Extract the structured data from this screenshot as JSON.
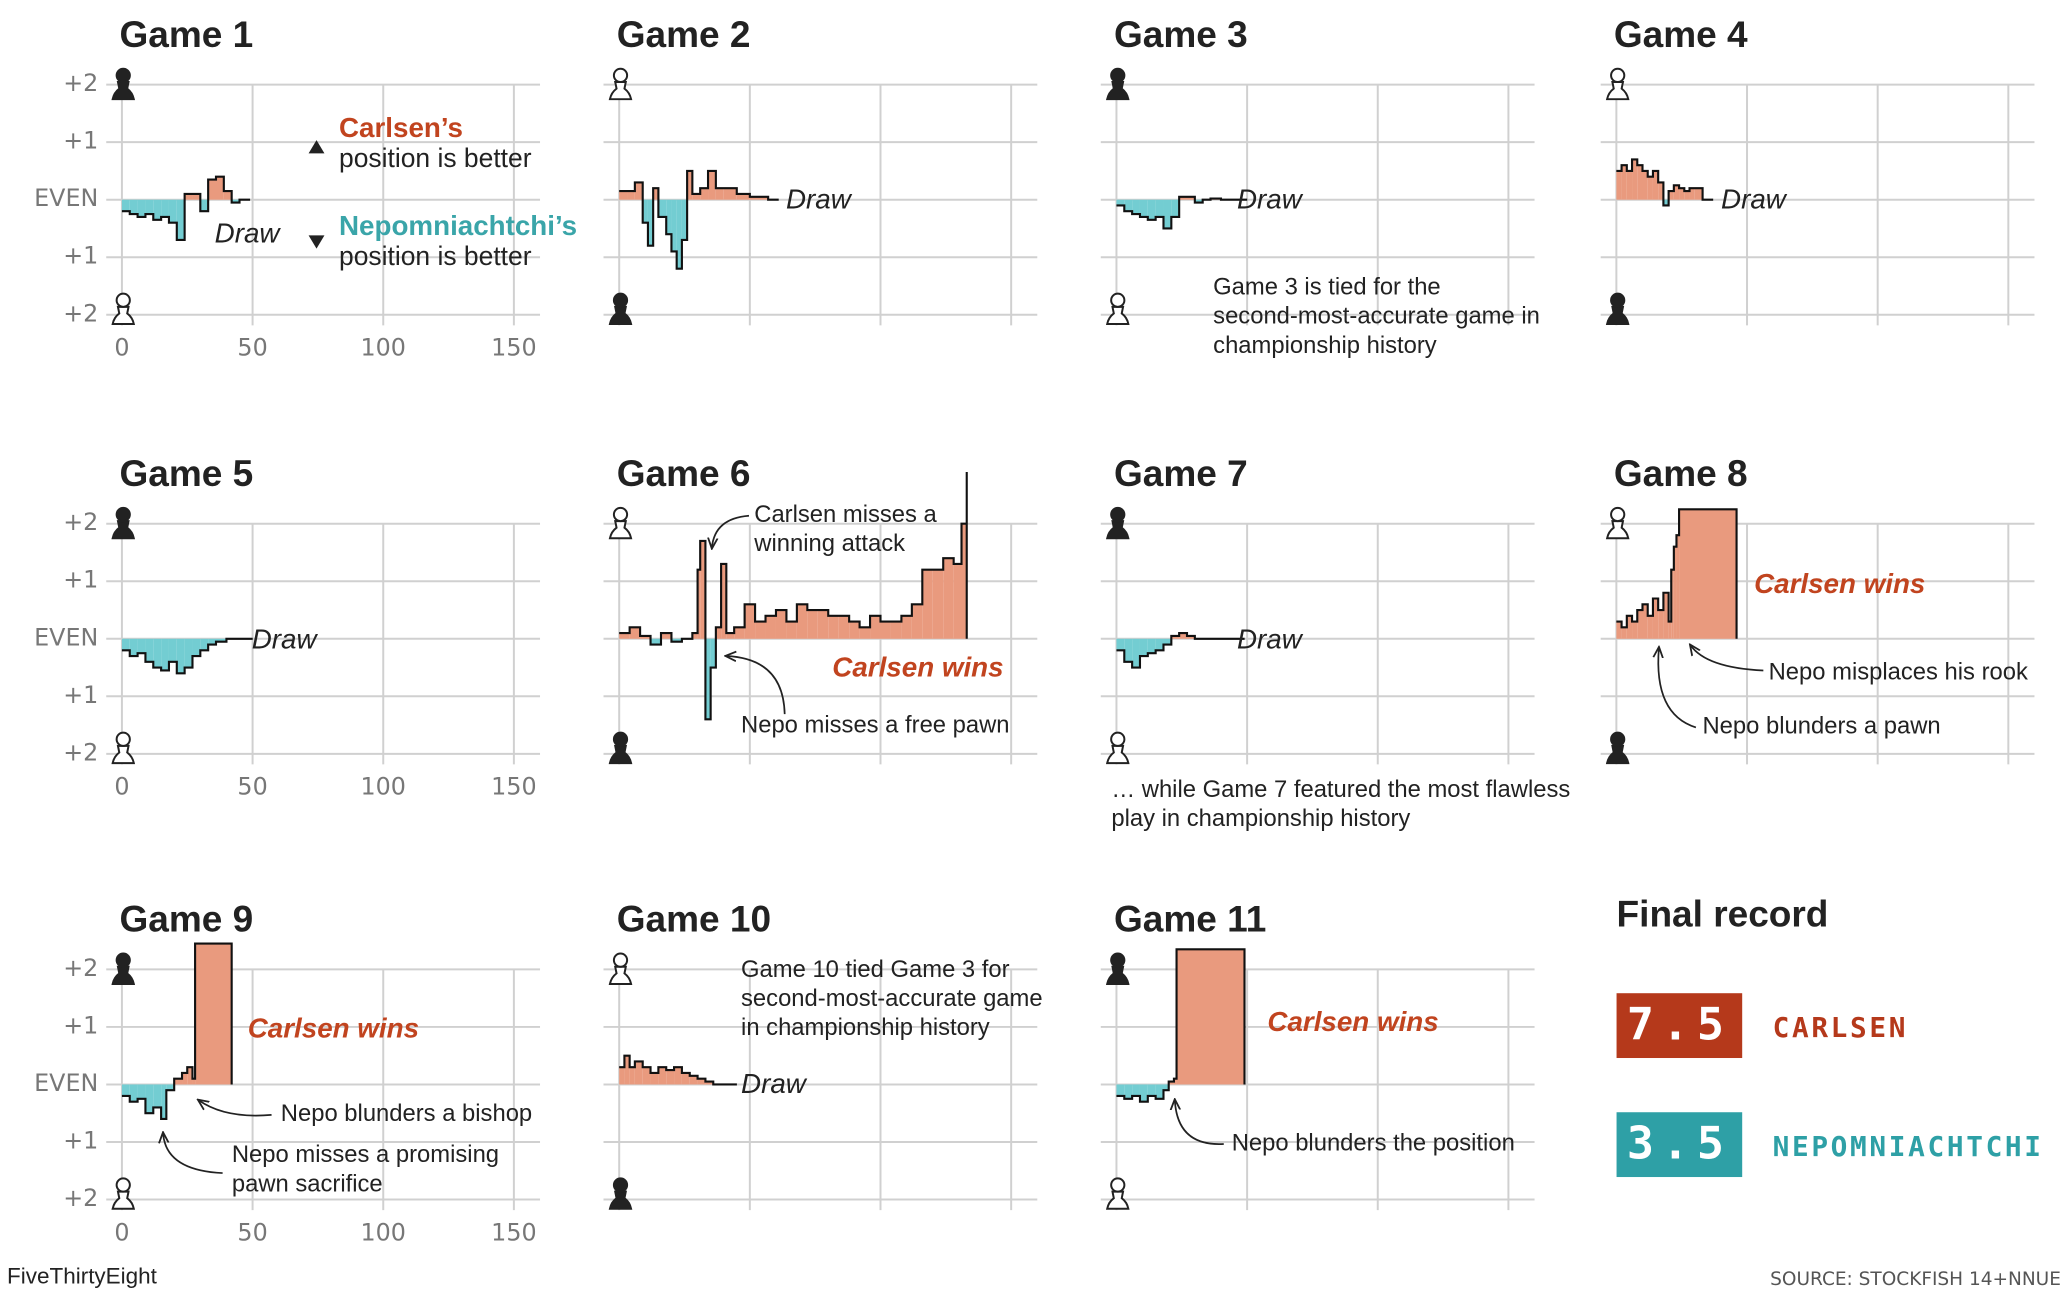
{
  "chart_data": [
    {
      "type": "step-area",
      "title": "Game 1",
      "x": [
        0,
        3,
        6,
        9,
        12,
        15,
        18,
        21,
        24,
        27,
        30,
        33,
        36,
        39,
        42,
        45
      ],
      "values": [
        -0.2,
        -0.25,
        -0.3,
        -0.25,
        -0.35,
        -0.3,
        -0.4,
        -0.7,
        0.1,
        0.1,
        -0.2,
        0.35,
        0.4,
        0.15,
        -0.05,
        0
      ],
      "colors": [
        "#e99a7e",
        "#73cdd2"
      ],
      "xlim": [
        -6,
        160
      ],
      "ylim": [
        -2,
        2
      ],
      "xticks": [
        0,
        50,
        100,
        150
      ],
      "yticks": [
        {
          "value": 2,
          "label": "+2"
        },
        {
          "value": 1,
          "label": "+1"
        },
        {
          "value": 0,
          "label": "EVEN"
        },
        {
          "value": -1,
          "label": "+1"
        },
        {
          "value": -2,
          "label": "+2"
        }
      ],
      "annotations": [
        [
          "Draw"
        ]
      ],
      "legend": [
        {
          "name": "Carlsen’s",
          "text": "position is better",
          "color": "#c1441f"
        },
        {
          "name": "Nepomniachtchi’s",
          "text": "position is better",
          "color": "#3aa5a9"
        }
      ]
    },
    {
      "type": "step-area",
      "title": "Game 2",
      "x": [
        0,
        3,
        6,
        9,
        11,
        13,
        15,
        18,
        20,
        22,
        24,
        26,
        28,
        31,
        34,
        37,
        40,
        45,
        50,
        57
      ],
      "values": [
        0.15,
        0.15,
        0.3,
        -0.4,
        -0.8,
        0.2,
        -0.3,
        -0.6,
        -0.9,
        -1.2,
        -0.7,
        0.5,
        0.1,
        0.2,
        0.5,
        0.2,
        0.2,
        0.1,
        0.05,
        0
      ],
      "colors": [
        "#e99a7e",
        "#73cdd2"
      ],
      "xlim": [
        -6,
        160
      ],
      "ylim": [
        -2,
        2
      ],
      "xticks": [
        0,
        50,
        100,
        150
      ],
      "yticks": [
        {
          "value": 2,
          "label": "+2"
        },
        {
          "value": 1,
          "label": "+1"
        },
        {
          "value": 0,
          "label": "EVEN"
        },
        {
          "value": -1,
          "label": "+1"
        },
        {
          "value": -2,
          "label": "+2"
        }
      ],
      "annotations": [
        [
          "Draw"
        ]
      ]
    },
    {
      "type": "step-area",
      "title": "Game 3",
      "x": [
        0,
        3,
        6,
        9,
        12,
        15,
        18,
        21,
        24,
        27,
        30,
        33,
        36,
        40,
        46
      ],
      "values": [
        -0.1,
        -0.2,
        -0.25,
        -0.3,
        -0.35,
        -0.3,
        -0.5,
        -0.3,
        0.05,
        0.05,
        -0.05,
        0,
        0.02,
        0,
        0
      ],
      "colors": [
        "#e99a7e",
        "#73cdd2"
      ],
      "xlim": [
        -6,
        160
      ],
      "ylim": [
        -2,
        2
      ],
      "xticks": [
        0,
        50,
        100,
        150
      ],
      "yticks": [
        {
          "value": 2,
          "label": "+2"
        },
        {
          "value": 1,
          "label": "+1"
        },
        {
          "value": 0,
          "label": "EVEN"
        },
        {
          "value": -1,
          "label": "+1"
        },
        {
          "value": -2,
          "label": "+2"
        }
      ],
      "annotations": [
        [
          "Draw"
        ],
        [
          "Game 3 is tied for the",
          "second-most-accurate game in",
          "championship history"
        ]
      ]
    },
    {
      "type": "step-area",
      "title": "Game 4",
      "x": [
        0,
        2,
        4,
        6,
        8,
        10,
        12,
        14,
        16,
        18,
        20,
        22,
        24,
        26,
        28,
        30,
        33
      ],
      "values": [
        0.5,
        0.6,
        0.5,
        0.7,
        0.6,
        0.5,
        0.4,
        0.5,
        0.3,
        -0.1,
        0.15,
        0.25,
        0.2,
        0.15,
        0.2,
        0.2,
        0
      ],
      "colors": [
        "#e99a7e",
        "#73cdd2"
      ],
      "xlim": [
        -6,
        160
      ],
      "ylim": [
        -2,
        2
      ],
      "xticks": [
        0,
        50,
        100,
        150
      ],
      "yticks": [
        {
          "value": 2,
          "label": "+2"
        },
        {
          "value": 1,
          "label": "+1"
        },
        {
          "value": 0,
          "label": "EVEN"
        },
        {
          "value": -1,
          "label": "+1"
        },
        {
          "value": -2,
          "label": "+2"
        }
      ],
      "annotations": [
        [
          "Draw"
        ]
      ]
    },
    {
      "type": "step-area",
      "title": "Game 5",
      "x": [
        0,
        3,
        6,
        9,
        12,
        15,
        18,
        21,
        24,
        27,
        30,
        33,
        36,
        40,
        46
      ],
      "values": [
        -0.2,
        -0.3,
        -0.25,
        -0.4,
        -0.5,
        -0.55,
        -0.4,
        -0.6,
        -0.5,
        -0.3,
        -0.2,
        -0.1,
        -0.05,
        0,
        0
      ],
      "colors": [
        "#e99a7e",
        "#73cdd2"
      ],
      "xlim": [
        -6,
        160
      ],
      "ylim": [
        -2,
        2
      ],
      "xticks": [
        0,
        50,
        100,
        150
      ],
      "yticks": [
        {
          "value": 2,
          "label": "+2"
        },
        {
          "value": 1,
          "label": "+1"
        },
        {
          "value": 0,
          "label": "EVEN"
        },
        {
          "value": -1,
          "label": "+1"
        },
        {
          "value": -2,
          "label": "+2"
        }
      ],
      "annotations": [
        [
          "Draw"
        ]
      ]
    },
    {
      "type": "step-area",
      "title": "Game 6",
      "x": [
        0,
        4,
        8,
        12,
        16,
        20,
        24,
        28,
        30,
        31,
        33,
        35,
        37,
        39,
        41,
        44,
        48,
        52,
        56,
        60,
        64,
        68,
        72,
        76,
        80,
        84,
        88,
        92,
        96,
        100,
        104,
        108,
        112,
        116,
        120,
        124,
        128,
        131,
        133
      ],
      "values": [
        0.1,
        0.2,
        0.05,
        -0.1,
        0.1,
        -0.05,
        0,
        0.1,
        1.2,
        1.7,
        -1.4,
        -0.5,
        0.2,
        1.3,
        0.1,
        0.2,
        0.6,
        0.3,
        0.4,
        0.5,
        0.3,
        0.6,
        0.5,
        0.5,
        0.4,
        0.4,
        0.3,
        0.2,
        0.4,
        0.3,
        0.3,
        0.4,
        0.6,
        1.2,
        1.2,
        1.4,
        1.3,
        2.0,
        2.9
      ],
      "colors": [
        "#e99a7e",
        "#73cdd2"
      ],
      "xlim": [
        -6,
        160
      ],
      "ylim": [
        -2,
        2
      ],
      "xticks": [
        0,
        50,
        100,
        150
      ],
      "yticks": [
        {
          "value": 2,
          "label": "+2"
        },
        {
          "value": 1,
          "label": "+1"
        },
        {
          "value": 0,
          "label": "EVEN"
        },
        {
          "value": -1,
          "label": "+1"
        },
        {
          "value": -2,
          "label": "+2"
        }
      ],
      "annotations": [
        [
          "Carlsen wins"
        ],
        [
          "Carlsen misses a",
          "winning attack"
        ],
        [
          "Nepo misses a free pawn"
        ]
      ]
    },
    {
      "type": "step-area",
      "title": "Game 7",
      "x": [
        0,
        3,
        6,
        9,
        12,
        15,
        18,
        21,
        24,
        27,
        30,
        36,
        45
      ],
      "values": [
        -0.2,
        -0.4,
        -0.5,
        -0.3,
        -0.25,
        -0.2,
        -0.1,
        0.05,
        0.1,
        0.05,
        0,
        0,
        0
      ],
      "colors": [
        "#e99a7e",
        "#73cdd2"
      ],
      "xlim": [
        -6,
        160
      ],
      "ylim": [
        -2,
        2
      ],
      "xticks": [
        0,
        50,
        100,
        150
      ],
      "yticks": [
        {
          "value": 2,
          "label": "+2"
        },
        {
          "value": 1,
          "label": "+1"
        },
        {
          "value": 0,
          "label": "EVEN"
        },
        {
          "value": -1,
          "label": "+1"
        },
        {
          "value": -2,
          "label": "+2"
        }
      ],
      "annotations": [
        [
          "Draw"
        ],
        [
          "… while Game 7 featured the most flawless",
          "play in championship history"
        ]
      ]
    },
    {
      "type": "step-area",
      "title": "Game 8",
      "x": [
        0,
        2,
        4,
        6,
        8,
        10,
        12,
        14,
        16,
        18,
        20,
        21,
        22,
        23,
        24,
        46
      ],
      "values": [
        0.3,
        0.2,
        0.4,
        0.3,
        0.5,
        0.6,
        0.4,
        0.7,
        0.5,
        0.8,
        0.3,
        1.2,
        1.6,
        1.8,
        2.25,
        2.25
      ],
      "colors": [
        "#e99a7e",
        "#73cdd2"
      ],
      "xlim": [
        -6,
        160
      ],
      "ylim": [
        -2,
        2
      ],
      "xticks": [
        0,
        50,
        100,
        150
      ],
      "yticks": [
        {
          "value": 2,
          "label": "+2"
        },
        {
          "value": 1,
          "label": "+1"
        },
        {
          "value": 0,
          "label": "EVEN"
        },
        {
          "value": -1,
          "label": "+1"
        },
        {
          "value": -2,
          "label": "+2"
        }
      ],
      "annotations": [
        [
          "Carlsen wins"
        ],
        [
          "Nepo misplaces his rook"
        ],
        [
          "Nepo blunders a pawn"
        ]
      ]
    },
    {
      "type": "step-area",
      "title": "Game 9",
      "x": [
        0,
        3,
        6,
        9,
        12,
        15,
        17,
        20,
        23,
        25,
        27,
        28,
        42
      ],
      "values": [
        -0.2,
        -0.3,
        -0.25,
        -0.5,
        -0.4,
        -0.6,
        -0.1,
        0.1,
        0.2,
        0.3,
        0.1,
        2.45,
        2.45
      ],
      "colors": [
        "#e99a7e",
        "#73cdd2"
      ],
      "xlim": [
        -6,
        160
      ],
      "ylim": [
        -2,
        2
      ],
      "xticks": [
        0,
        50,
        100,
        150
      ],
      "yticks": [
        {
          "value": 2,
          "label": "+2"
        },
        {
          "value": 1,
          "label": "+1"
        },
        {
          "value": 0,
          "label": "EVEN"
        },
        {
          "value": -1,
          "label": "+1"
        },
        {
          "value": -2,
          "label": "+2"
        }
      ],
      "annotations": [
        [
          "Carlsen wins"
        ],
        [
          "Nepo blunders a bishop"
        ],
        [
          "Nepo misses a promising",
          "pawn sacrifice"
        ]
      ]
    },
    {
      "type": "step-area",
      "title": "Game 10",
      "x": [
        0,
        2,
        4,
        6,
        9,
        12,
        15,
        18,
        21,
        24,
        27,
        30,
        33,
        36,
        41
      ],
      "values": [
        0.3,
        0.5,
        0.3,
        0.4,
        0.3,
        0.2,
        0.3,
        0.25,
        0.3,
        0.2,
        0.15,
        0.1,
        0.05,
        0,
        0
      ],
      "colors": [
        "#e99a7e",
        "#73cdd2"
      ],
      "xlim": [
        -6,
        160
      ],
      "ylim": [
        -2,
        2
      ],
      "xticks": [
        0,
        50,
        100,
        150
      ],
      "yticks": [
        {
          "value": 2,
          "label": "+2"
        },
        {
          "value": 1,
          "label": "+1"
        },
        {
          "value": 0,
          "label": "EVEN"
        },
        {
          "value": -1,
          "label": "+1"
        },
        {
          "value": -2,
          "label": "+2"
        }
      ],
      "annotations": [
        [
          "Game 10 tied Game 3 for",
          "second-most-accurate game",
          "in championship history"
        ],
        [
          "Draw"
        ]
      ]
    },
    {
      "type": "step-area",
      "title": "Game 11",
      "x": [
        0,
        3,
        6,
        9,
        12,
        15,
        18,
        20,
        22,
        23,
        49
      ],
      "values": [
        -0.2,
        -0.25,
        -0.2,
        -0.3,
        -0.2,
        -0.25,
        -0.1,
        0.05,
        0.1,
        2.35,
        2.35
      ],
      "colors": [
        "#e99a7e",
        "#73cdd2"
      ],
      "xlim": [
        -6,
        160
      ],
      "ylim": [
        -2,
        2
      ],
      "xticks": [
        0,
        50,
        100,
        150
      ],
      "yticks": [
        {
          "value": 2,
          "label": "+2"
        },
        {
          "value": 1,
          "label": "+1"
        },
        {
          "value": 0,
          "label": "EVEN"
        },
        {
          "value": -1,
          "label": "+1"
        },
        {
          "value": -2,
          "label": "+2"
        }
      ],
      "annotations": [
        [
          "Carlsen wins"
        ],
        [
          "Nepo blunders the position"
        ]
      ]
    }
  ],
  "final_record": {
    "title": "Final record",
    "entries": [
      {
        "score": 7.5,
        "name": "CARLSEN",
        "color": "#b5391b"
      },
      {
        "score": 3.5,
        "name": "NEPOMNIACHTCHI",
        "color": "#2ea0a6"
      }
    ]
  },
  "credit": "FiveThirtyEight",
  "source": "SOURCE: STOCKFISH 14+NNUE"
}
